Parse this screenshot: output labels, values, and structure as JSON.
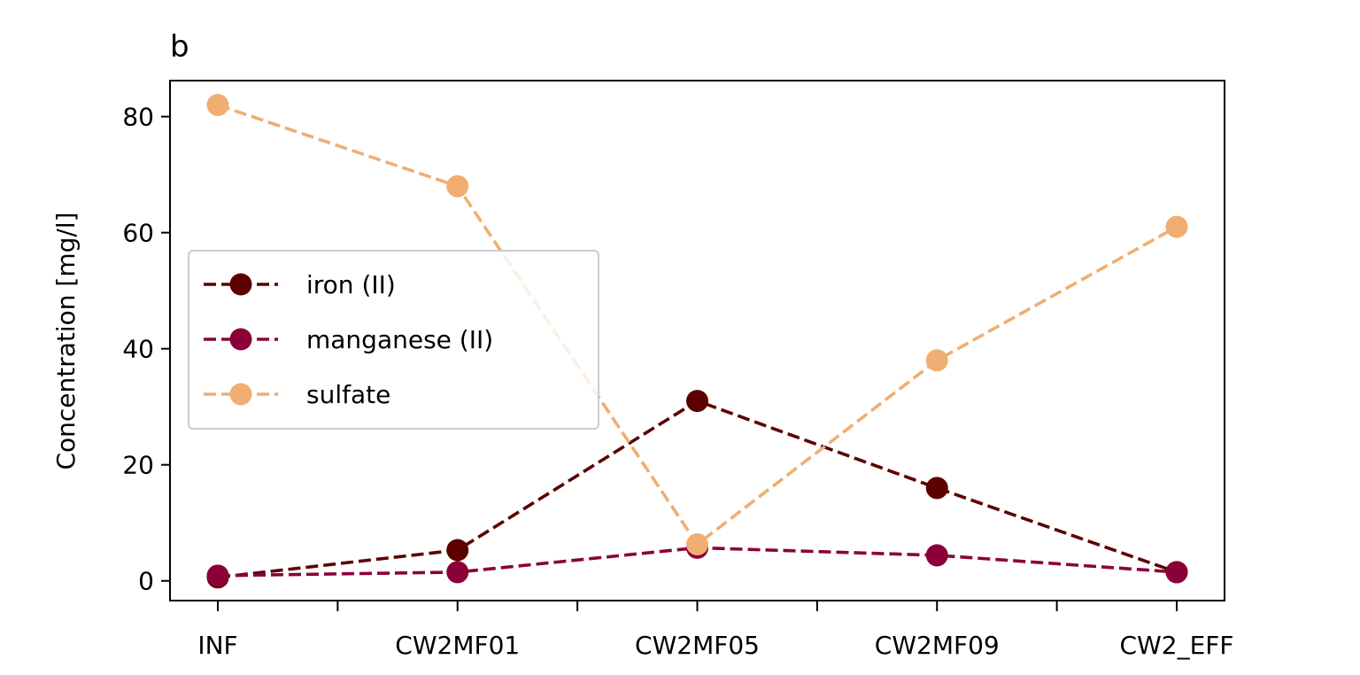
{
  "chart_data": {
    "type": "line",
    "title": "b",
    "xlabel": "",
    "ylabel": "Concentration [mg/l]",
    "categories": [
      "INF",
      "CW2MF01",
      "CW2MF05",
      "CW2MF09",
      "CW2_EFF"
    ],
    "minor_ticks_between_categories": true,
    "ylim": [
      -3.4,
      86.2
    ],
    "yticks": [
      0,
      20,
      40,
      60,
      80
    ],
    "grid": false,
    "legend_position": "center-left",
    "series": [
      {
        "name": "iron (II)",
        "values": [
          0.6,
          5.3,
          31.0,
          16.0,
          1.5
        ],
        "color": "#5c0000",
        "line_style": "dashed",
        "marker": "circle"
      },
      {
        "name": "manganese (II)",
        "values": [
          0.9,
          1.5,
          5.7,
          4.4,
          1.5
        ],
        "color": "#8b0038",
        "line_style": "dashed",
        "marker": "circle"
      },
      {
        "name": "sulfate",
        "values": [
          82.0,
          68.0,
          6.3,
          38.0,
          61.0
        ],
        "color": "#f0ae72",
        "line_style": "dashed",
        "marker": "circle"
      }
    ]
  }
}
